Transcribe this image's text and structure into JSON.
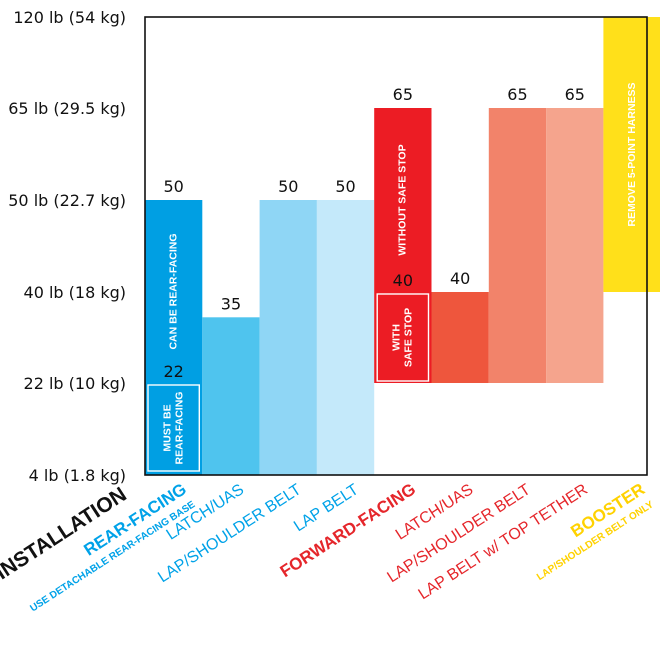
{
  "chart_data": {
    "type": "bar",
    "y_axis_labels": [
      "4 lb (1.8 kg)",
      "22 lb (10 kg)",
      "40 lb (18 kg)",
      "50 lb (22.7 kg)",
      "65 lb (29.5 kg)",
      "120 lb (54 kg)"
    ],
    "installation_label": "INSTALLATION",
    "bars": [
      {
        "category": "REAR-FACING",
        "sub": "USE DETACHABLE REAR-FACING BASE",
        "label_color": "#00a2e8",
        "color": "#009fe3",
        "low": 4,
        "high": 50,
        "value_label": "50",
        "inner_value_label": "22",
        "inner_texts": [
          "CAN BE REAR-FACING"
        ],
        "box_texts": [
          "MUST BE",
          "REAR-FACING"
        ]
      },
      {
        "category": "LATCH/UAS",
        "label_color": "#00a2e8",
        "color": "#4fc4ee",
        "low": 4,
        "high": 35,
        "value_label": "35"
      },
      {
        "category": "LAP/SHOULDER BELT",
        "label_color": "#00a2e8",
        "color": "#8fd6f5",
        "low": 4,
        "high": 50,
        "value_label": "50"
      },
      {
        "category": "LAP BELT",
        "label_color": "#00a2e8",
        "color": "#c4e9fa",
        "low": 4,
        "high": 50,
        "value_label": "50"
      },
      {
        "category": "FORWARD-FACING",
        "label_color": "#e5262b",
        "color": "#ec1c24",
        "low": 22,
        "high": 65,
        "value_label": "65",
        "inner_value_label": "40",
        "inner_texts": [
          "WITHOUT SAFE STOP"
        ],
        "box_texts": [
          "WITH",
          "SAFE STOP"
        ]
      },
      {
        "category": "LATCH/UAS",
        "label_color": "#e5262b",
        "color": "#ee563d",
        "low": 22,
        "high": 40,
        "value_label": "40"
      },
      {
        "category": "LAP/SHOULDER BELT",
        "label_color": "#e5262b",
        "color": "#f2836a",
        "low": 22,
        "high": 65,
        "value_label": "65"
      },
      {
        "category": "LAP BELT w/ TOP TETHER",
        "label_color": "#e5262b",
        "color": "#f5a48d",
        "low": 22,
        "high": 65,
        "value_label": "65"
      },
      {
        "category": "BOOSTER",
        "sub": "LAP/SHOULDER BELT ONLY",
        "label_color": "#ffd200",
        "color": "#ffe01a",
        "low": 40,
        "high": 120,
        "value_label": "",
        "inner_texts": [
          "REMOVE 5-POINT HARNESS"
        ]
      }
    ]
  }
}
